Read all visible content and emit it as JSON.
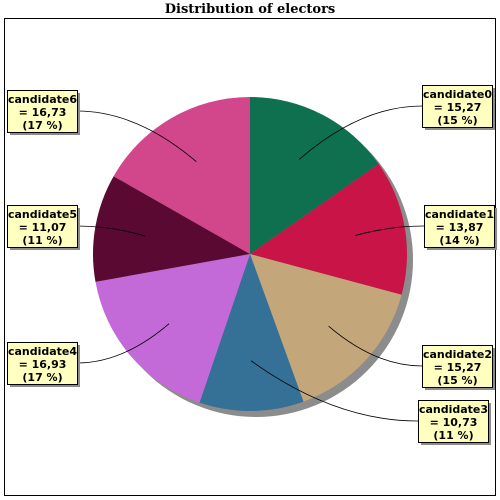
{
  "chart_data": {
    "type": "pie",
    "title": "Distribution of electors",
    "slices": [
      {
        "name": "candidate0",
        "value": 15.27,
        "value_label": "= 15,27",
        "percent_label": "(15 %)",
        "color": "#0f7050"
      },
      {
        "name": "candidate1",
        "value": 13.87,
        "value_label": "= 13,87",
        "percent_label": "(14 %)",
        "color": "#c81446"
      },
      {
        "name": "candidate2",
        "value": 15.27,
        "value_label": "= 15,27",
        "percent_label": "(15 %)",
        "color": "#c3a67a"
      },
      {
        "name": "candidate3",
        "value": 10.73,
        "value_label": "= 10,73",
        "percent_label": "(11 %)",
        "color": "#357096"
      },
      {
        "name": "candidate4",
        "value": 16.93,
        "value_label": "= 16,93",
        "percent_label": "(17 %)",
        "color": "#c46ad8"
      },
      {
        "name": "candidate5",
        "value": 11.07,
        "value_label": "= 11,07",
        "percent_label": "(11 %)",
        "color": "#5a0a32"
      },
      {
        "name": "candidate6",
        "value": 16.73,
        "value_label": "= 16,73",
        "percent_label": "(17 %)",
        "color": "#d2478c"
      }
    ],
    "start_angle": "top",
    "direction": "clockwise",
    "label_placement": "outside-with-leader-lines",
    "label_box_color": "#ffffc0"
  }
}
